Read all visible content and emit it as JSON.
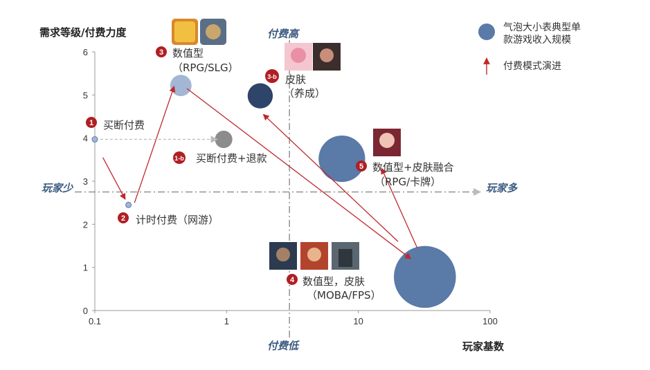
{
  "colors": {
    "bubble": "#5a7aa8",
    "bubble_dark": "#2e4468",
    "bubble_light": "#a3b6d3",
    "bubble_grey": "#8c8c8c",
    "arrow": "#c0282d",
    "badge": "#b01e23",
    "quad_text": "#3a5a80",
    "guide": "#8a8a8a"
  },
  "chart_data": {
    "type": "scatter",
    "xscale": "log",
    "xlim": [
      0.1,
      100
    ],
    "ylim": [
      0,
      6
    ],
    "xticks": [
      "0.1",
      "1",
      "10",
      "100"
    ],
    "yticks": [
      "0",
      "1",
      "2",
      "3",
      "4",
      "5",
      "6"
    ],
    "ylabel": "需求等级/付费力度",
    "xlabel": "玩家基数",
    "quadrant_labels": {
      "top": "付费高",
      "bottom": "付费低",
      "left": "玩家少",
      "right": "玩家多"
    },
    "threshold": {
      "x": 3,
      "y": 2.75
    },
    "legend": {
      "bubble": "气泡大小表典型单款游戏收入规模",
      "arrow": "付费模式演进"
    },
    "bubbles": [
      {
        "id": "s1",
        "x": 0.1,
        "y": 3.97,
        "size": 0.04,
        "tone": "light"
      },
      {
        "id": "s1b",
        "x": 0.95,
        "y": 3.97,
        "size": 0.45,
        "tone": "grey"
      },
      {
        "id": "s2",
        "x": 0.18,
        "y": 2.45,
        "size": 0.08,
        "tone": "light"
      },
      {
        "id": "s3",
        "x": 0.45,
        "y": 5.22,
        "size": 0.55,
        "tone": "light"
      },
      {
        "id": "s3b",
        "x": 1.8,
        "y": 4.98,
        "size": 0.65,
        "tone": "dark"
      },
      {
        "id": "s4",
        "x": 32,
        "y": 0.78,
        "size": 1.6,
        "tone": "mid"
      },
      {
        "id": "s5",
        "x": 7.5,
        "y": 3.52,
        "size": 1.2,
        "tone": "mid"
      }
    ],
    "stages": [
      {
        "badge": "1",
        "label": "买断付费",
        "sub": ""
      },
      {
        "badge": "1-b",
        "label": "买断付费+退款",
        "sub": ""
      },
      {
        "badge": "2",
        "label": "计时付费（网游）",
        "sub": ""
      },
      {
        "badge": "3",
        "label": "数值型",
        "sub": "（RPG/SLG）"
      },
      {
        "badge": "3-b",
        "label": "皮肤",
        "sub": "（养成）"
      },
      {
        "badge": "4",
        "label": "数值型，皮肤",
        "sub": "（MOBA/FPS）"
      },
      {
        "badge": "5",
        "label": "数值型+皮肤融合",
        "sub": "（RPG/卡牌）"
      }
    ],
    "arrows": [
      {
        "from": [
          0.115,
          3.55
        ],
        "to": [
          0.17,
          2.58
        ]
      },
      {
        "from": [
          0.2,
          2.5
        ],
        "to": [
          0.4,
          5.2
        ]
      },
      {
        "from": [
          0.5,
          5.15
        ],
        "to": [
          25,
          1.2
        ]
      },
      {
        "from": [
          28,
          1.45
        ],
        "to": [
          15,
          3.3
        ]
      },
      {
        "from": [
          20,
          1.6
        ],
        "to": [
          1.9,
          4.55
        ]
      }
    ],
    "dashed_arrow": {
      "from": [
        0.11,
        3.97
      ],
      "to": [
        0.85,
        3.97
      ]
    }
  }
}
